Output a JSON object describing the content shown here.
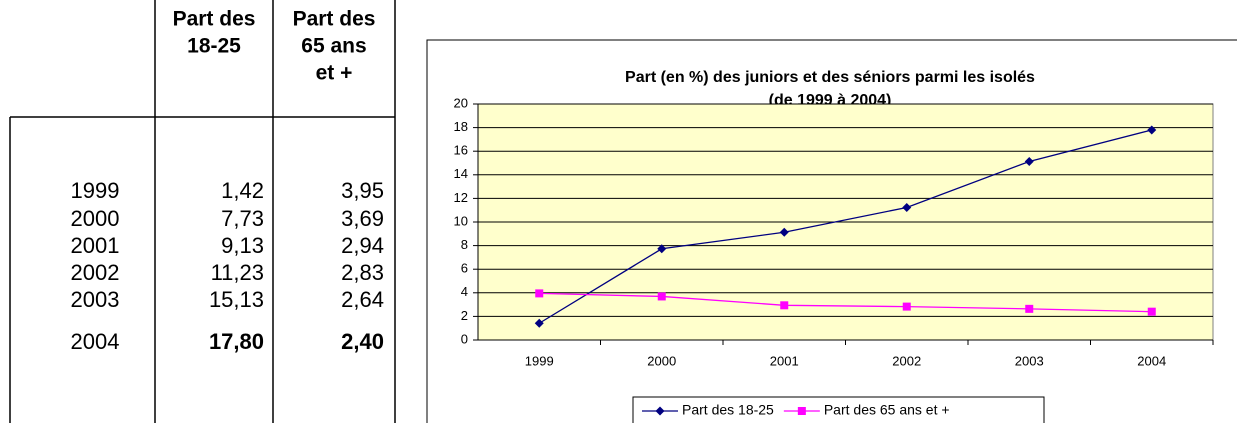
{
  "table": {
    "header": [
      [
        "Part des",
        "18-25"
      ],
      [
        "Part des",
        "65 ans",
        "et +"
      ]
    ],
    "rows": [
      [
        "1999",
        "1,42",
        "3,95"
      ],
      [
        "2000",
        "7,73",
        "3,69"
      ],
      [
        "2001",
        "9,13",
        "2,94"
      ],
      [
        "2002",
        "11,23",
        "2,83"
      ],
      [
        "2003",
        "15,13",
        "2,64"
      ],
      [
        "2004",
        "17,80",
        "2,40"
      ]
    ]
  },
  "chart_data": {
    "type": "line",
    "title": [
      "Part (en %) des juniors et des séniors parmi les isolés",
      "(de 1999 à 2004)"
    ],
    "categories": [
      "1999",
      "2000",
      "2001",
      "2002",
      "2003",
      "2004"
    ],
    "series": [
      {
        "name": "Part des 18-25",
        "color": "#000080",
        "values": [
          1.42,
          7.73,
          9.13,
          11.23,
          15.13,
          17.8
        ]
      },
      {
        "name": "Part des 65 ans et +",
        "color": "#ff00ff",
        "values": [
          3.95,
          3.69,
          2.94,
          2.83,
          2.64,
          2.4
        ]
      }
    ],
    "ylim": [
      0,
      20
    ],
    "yticks": [
      0,
      2,
      4,
      6,
      8,
      10,
      12,
      14,
      16,
      18,
      20
    ],
    "grid": true,
    "legend": "bottom",
    "plot_background": "#ffffcc"
  }
}
